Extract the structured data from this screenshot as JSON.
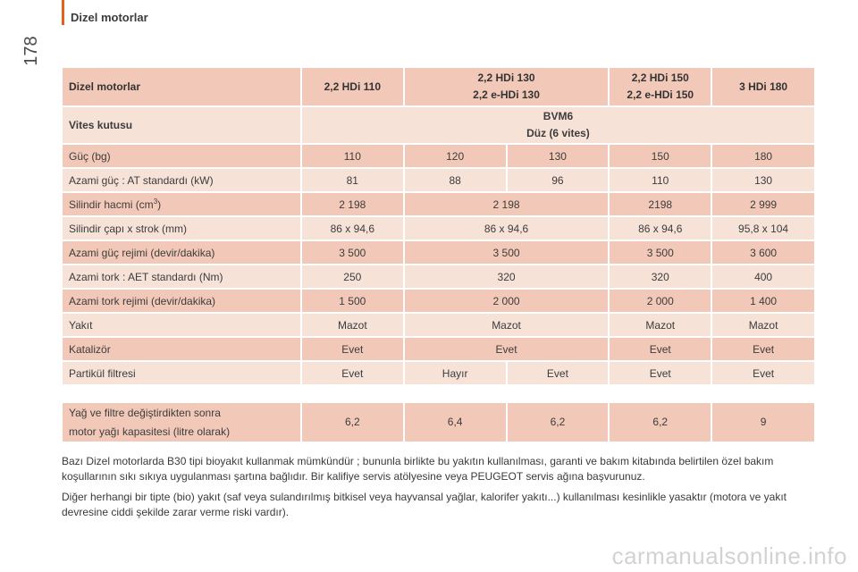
{
  "page": {
    "section_title": "Dizel motorlar",
    "page_number": "178"
  },
  "table": {
    "header": {
      "label": "Dizel motorlar",
      "c1": "2,2 HDi 110",
      "c2_l1": "2,2 HDi 130",
      "c2_l2": "2,2 e-HDi 130",
      "c3_l1": "2,2 HDi 150",
      "c3_l2": "2,2 e-HDi 150",
      "c4": "3 HDi 180"
    },
    "gearbox": {
      "label": "Vites kutusu",
      "value_l1": "BVM6",
      "value_l2": "Düz (6 vites)"
    },
    "power_hp": {
      "label": "Güç (bg)",
      "values": [
        "110",
        "120",
        "130",
        "150",
        "180"
      ]
    },
    "max_power_kw": {
      "label": "Azami güç : AT standardı (kW)",
      "values": [
        "81",
        "88",
        "96",
        "110",
        "130"
      ]
    },
    "displacement": {
      "label": "Silindir hacmi (cm",
      "sup": "3",
      "suffix": ")",
      "values": [
        "2 198",
        "2 198",
        "2198",
        "2 999"
      ]
    },
    "bore_stroke": {
      "label": "Silindir çapı x strok (mm)",
      "values": [
        "86 x 94,6",
        "86 x 94,6",
        "86 x 94,6",
        "95,8 x 104"
      ]
    },
    "max_power_rpm": {
      "label": "Azami güç rejimi (devir/dakika)",
      "values": [
        "3 500",
        "3 500",
        "3 500",
        "3 600"
      ]
    },
    "max_torque": {
      "label": "Azami tork : AET standardı (Nm)",
      "values": [
        "250",
        "320",
        "320",
        "400"
      ]
    },
    "max_torque_rpm": {
      "label": "Azami tork rejimi (devir/dakika)",
      "values": [
        "1 500",
        "2 000",
        "2 000",
        "1 400"
      ]
    },
    "fuel": {
      "label": "Yakıt",
      "values": [
        "Mazot",
        "Mazot",
        "Mazot",
        "Mazot"
      ]
    },
    "catalyst": {
      "label": "Katalizör",
      "values": [
        "Evet",
        "Evet",
        "Evet",
        "Evet"
      ]
    },
    "particle_filter": {
      "label": "Partikül filtresi",
      "values": [
        "Evet",
        "Hayır",
        "Evet",
        "Evet",
        "Evet"
      ]
    }
  },
  "oil": {
    "label_l1": "Yağ ve filtre değiştirdikten sonra",
    "label_l2": "motor yağı kapasitesi (litre olarak)",
    "values": [
      "6,2",
      "6,4",
      "6,2",
      "6,2",
      "9"
    ]
  },
  "notes": {
    "p1": "Bazı Dizel motorlarda B30 tipi bioyakıt kullanmak mümkündür ; bununla birlikte bu yakıtın kullanılması, garanti ve bakım kitabında belirtilen özel bakım koşullarının sıkı sıkıya uygulanması şartına bağlıdır. Bir kalifiye servis atölyesine veya PEUGEOT servis ağına başvurunuz.",
    "p2": "Diğer herhangi bir tipte (bio) yakıt (saf veya sulandırılmış bitkisel veya hayvansal yağlar, kalorifer yakıtı...) kullanılması kesinlikle yasaktır (motora ve yakıt devresine ciddi şekilde zarar verme riski vardır)."
  },
  "watermark": "carmanualsonline.info",
  "colors": {
    "accent": "#e2611f",
    "header_fill": "#f2c9b8",
    "light_fill": "#f7e2d8"
  }
}
